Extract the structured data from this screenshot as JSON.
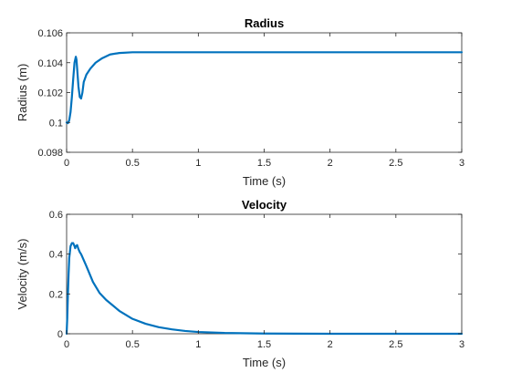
{
  "chart_data": [
    {
      "type": "line",
      "title": "Radius",
      "xlabel": "Time (s)",
      "ylabel": "Radius (m)",
      "xlim": [
        0,
        3
      ],
      "ylim": [
        0.098,
        0.106
      ],
      "xticks": [
        0,
        0.5,
        1,
        1.5,
        2,
        2.5,
        3
      ],
      "xtick_labels": [
        "0",
        "0.5",
        "1",
        "1.5",
        "2",
        "2.5",
        "3"
      ],
      "yticks": [
        0.098,
        0.1,
        0.102,
        0.104,
        0.106
      ],
      "ytick_labels": [
        "0.098",
        "0.1",
        "0.102",
        "0.104",
        "0.106"
      ],
      "grid": false,
      "series": [
        {
          "color": "#0072BD",
          "x": [
            0,
            0.01,
            0.02,
            0.03,
            0.04,
            0.05,
            0.06,
            0.07,
            0.075,
            0.08,
            0.09,
            0.1,
            0.11,
            0.12,
            0.13,
            0.15,
            0.18,
            0.22,
            0.27,
            0.33,
            0.4,
            0.5,
            0.6,
            0.7,
            0.8,
            1.0,
            1.5,
            2.0,
            2.5,
            3.0
          ],
          "y": [
            0.1,
            0.09995,
            0.10015,
            0.1007,
            0.1017,
            0.1029,
            0.104,
            0.1044,
            0.1042,
            0.1036,
            0.1024,
            0.1017,
            0.1016,
            0.102,
            0.1027,
            0.1032,
            0.1036,
            0.104,
            0.1043,
            0.10455,
            0.10465,
            0.1047,
            0.1047,
            0.1047,
            0.1047,
            0.1047,
            0.1047,
            0.1047,
            0.1047,
            0.1047
          ]
        }
      ]
    },
    {
      "type": "line",
      "title": "Velocity",
      "xlabel": "Time (s)",
      "ylabel": "Velocity (m/s)",
      "xlim": [
        0,
        3
      ],
      "ylim": [
        0,
        0.6
      ],
      "xticks": [
        0,
        0.5,
        1,
        1.5,
        2,
        2.5,
        3
      ],
      "xtick_labels": [
        "0",
        "0.5",
        "1",
        "1.5",
        "2",
        "2.5",
        "3"
      ],
      "yticks": [
        0,
        0.2,
        0.4,
        0.6
      ],
      "ytick_labels": [
        "0",
        "0.2",
        "0.4",
        "0.6"
      ],
      "grid": false,
      "series": [
        {
          "color": "#0072BD",
          "x": [
            0,
            0.005,
            0.01,
            0.015,
            0.02,
            0.03,
            0.04,
            0.05,
            0.06,
            0.065,
            0.07,
            0.08,
            0.09,
            0.1,
            0.11,
            0.12,
            0.15,
            0.2,
            0.25,
            0.3,
            0.4,
            0.5,
            0.6,
            0.7,
            0.8,
            0.9,
            1.0,
            1.2,
            1.5,
            2.0,
            2.5,
            3.0
          ],
          "y": [
            0,
            0.08,
            0.2,
            0.3,
            0.38,
            0.44,
            0.455,
            0.455,
            0.44,
            0.43,
            0.44,
            0.445,
            0.425,
            0.41,
            0.4,
            0.385,
            0.34,
            0.26,
            0.205,
            0.17,
            0.115,
            0.075,
            0.05,
            0.033,
            0.022,
            0.014,
            0.009,
            0.004,
            0.001,
            0,
            0,
            0
          ]
        }
      ]
    }
  ]
}
